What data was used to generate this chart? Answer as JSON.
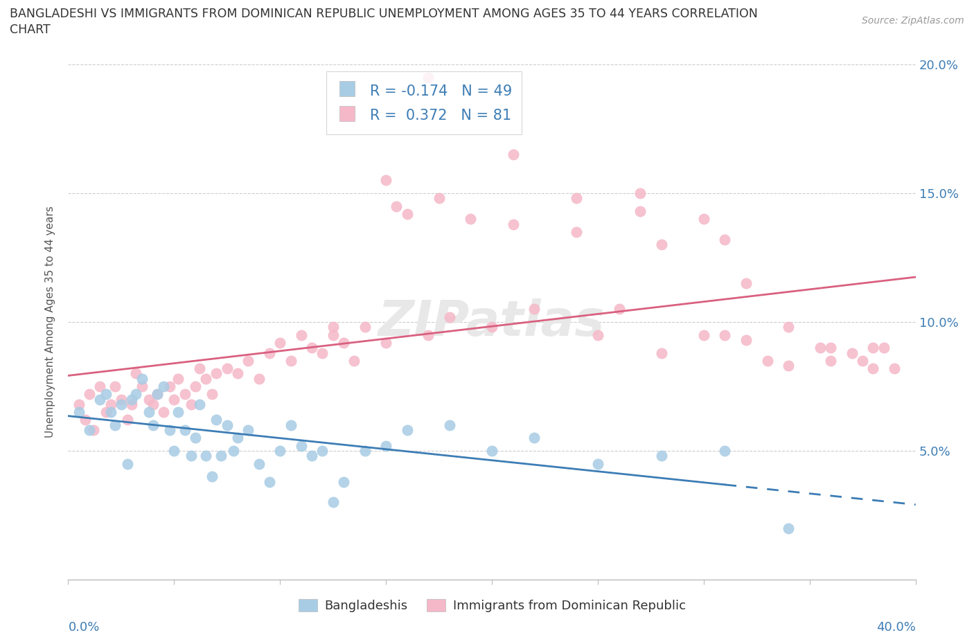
{
  "title_line1": "BANGLADESHI VS IMMIGRANTS FROM DOMINICAN REPUBLIC UNEMPLOYMENT AMONG AGES 35 TO 44 YEARS CORRELATION",
  "title_line2": "CHART",
  "source": "Source: ZipAtlas.com",
  "ylabel": "Unemployment Among Ages 35 to 44 years",
  "legend_label1": "Bangladeshis",
  "legend_label2": "Immigrants from Dominican Republic",
  "R1": -0.174,
  "N1": 49,
  "R2": 0.372,
  "N2": 81,
  "color_blue": "#a8cce4",
  "color_pink": "#f5b8c8",
  "color_blue_line": "#3d7db5",
  "color_pink_line": "#d96080",
  "color_text_axis": "#3d7db5",
  "xlim": [
    0.0,
    0.4
  ],
  "ylim": [
    0.0,
    0.2
  ],
  "yticks": [
    0.05,
    0.1,
    0.15,
    0.2
  ],
  "ytick_labels": [
    "5.0%",
    "10.0%",
    "15.0%",
    "20.0%"
  ],
  "blue_x": [
    0.005,
    0.01,
    0.015,
    0.018,
    0.02,
    0.022,
    0.025,
    0.028,
    0.03,
    0.032,
    0.035,
    0.038,
    0.04,
    0.042,
    0.045,
    0.048,
    0.05,
    0.052,
    0.055,
    0.058,
    0.06,
    0.062,
    0.065,
    0.068,
    0.07,
    0.072,
    0.075,
    0.078,
    0.08,
    0.085,
    0.09,
    0.095,
    0.1,
    0.105,
    0.11,
    0.115,
    0.12,
    0.125,
    0.13,
    0.14,
    0.15,
    0.16,
    0.18,
    0.2,
    0.22,
    0.25,
    0.28,
    0.31,
    0.34
  ],
  "blue_y": [
    0.065,
    0.058,
    0.07,
    0.072,
    0.065,
    0.06,
    0.068,
    0.045,
    0.07,
    0.072,
    0.078,
    0.065,
    0.06,
    0.072,
    0.075,
    0.058,
    0.05,
    0.065,
    0.058,
    0.048,
    0.055,
    0.068,
    0.048,
    0.04,
    0.062,
    0.048,
    0.06,
    0.05,
    0.055,
    0.058,
    0.045,
    0.038,
    0.05,
    0.06,
    0.052,
    0.048,
    0.05,
    0.03,
    0.038,
    0.05,
    0.052,
    0.058,
    0.06,
    0.05,
    0.055,
    0.045,
    0.048,
    0.05,
    0.02
  ],
  "pink_x": [
    0.005,
    0.008,
    0.01,
    0.012,
    0.015,
    0.018,
    0.02,
    0.022,
    0.025,
    0.028,
    0.03,
    0.032,
    0.035,
    0.038,
    0.04,
    0.042,
    0.045,
    0.048,
    0.05,
    0.052,
    0.055,
    0.058,
    0.06,
    0.062,
    0.065,
    0.068,
    0.07,
    0.075,
    0.08,
    0.085,
    0.09,
    0.095,
    0.1,
    0.105,
    0.11,
    0.115,
    0.12,
    0.125,
    0.13,
    0.135,
    0.14,
    0.15,
    0.155,
    0.16,
    0.17,
    0.175,
    0.18,
    0.2,
    0.21,
    0.22,
    0.25,
    0.27,
    0.28,
    0.3,
    0.31,
    0.32,
    0.33,
    0.34,
    0.355,
    0.37,
    0.38,
    0.39,
    0.17,
    0.21,
    0.28,
    0.32,
    0.26,
    0.3,
    0.34,
    0.36,
    0.375,
    0.385,
    0.15,
    0.19,
    0.24,
    0.27,
    0.31,
    0.36,
    0.38,
    0.125,
    0.24
  ],
  "pink_y": [
    0.068,
    0.062,
    0.072,
    0.058,
    0.075,
    0.065,
    0.068,
    0.075,
    0.07,
    0.062,
    0.068,
    0.08,
    0.075,
    0.07,
    0.068,
    0.072,
    0.065,
    0.075,
    0.07,
    0.078,
    0.072,
    0.068,
    0.075,
    0.082,
    0.078,
    0.072,
    0.08,
    0.082,
    0.08,
    0.085,
    0.078,
    0.088,
    0.092,
    0.085,
    0.095,
    0.09,
    0.088,
    0.095,
    0.092,
    0.085,
    0.098,
    0.092,
    0.145,
    0.142,
    0.095,
    0.148,
    0.102,
    0.098,
    0.138,
    0.105,
    0.095,
    0.15,
    0.088,
    0.095,
    0.095,
    0.115,
    0.085,
    0.098,
    0.09,
    0.088,
    0.082,
    0.082,
    0.195,
    0.165,
    0.13,
    0.093,
    0.105,
    0.14,
    0.083,
    0.09,
    0.085,
    0.09,
    0.155,
    0.14,
    0.135,
    0.143,
    0.132,
    0.085,
    0.09,
    0.098,
    0.148
  ]
}
